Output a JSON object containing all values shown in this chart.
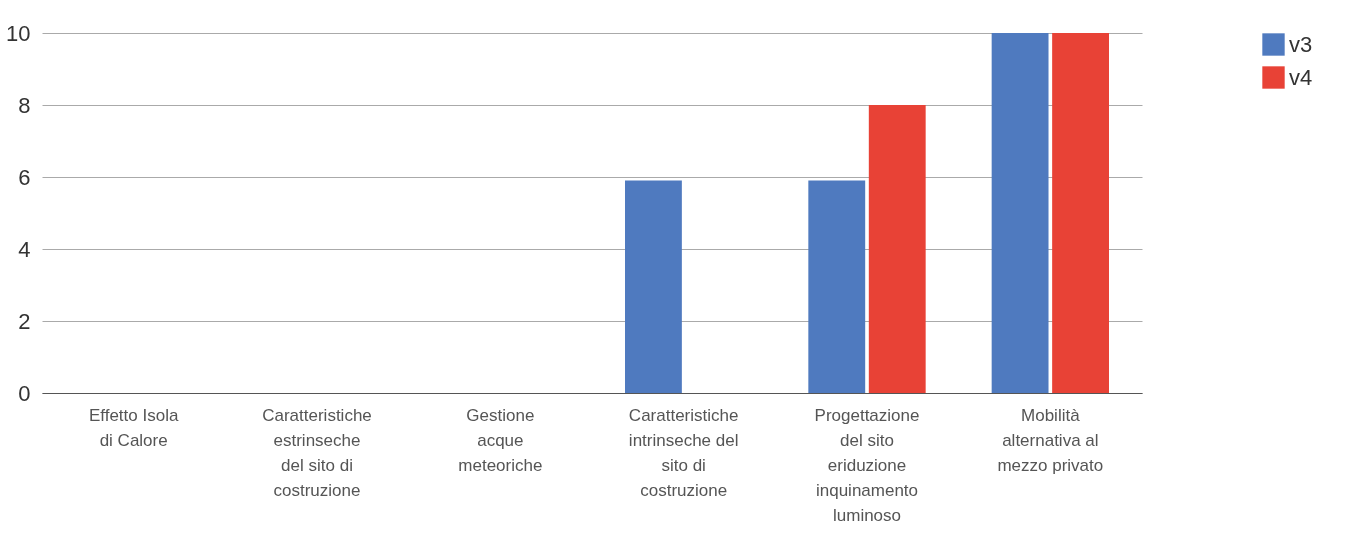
{
  "chart_data": {
    "type": "bar",
    "categories": [
      "Effetto Isola\ndi Calore",
      "Caratteristiche\nestrinseche\ndel sito di\ncostruzione",
      "Gestione\nacque\nmeteoriche",
      "Caratteristiche\nintrinseche del\nsito di\ncostruzione",
      "Progettazione\ndel sito\neriduzione\ninquinamento\nluminoso",
      "Mobilità\nalternativa al\nmezzo privato"
    ],
    "series": [
      {
        "name": "v3",
        "color": "#4f7abf",
        "values": [
          0,
          0,
          0,
          5.9,
          5.9,
          10
        ]
      },
      {
        "name": "v4",
        "color": "#e84236",
        "values": [
          0,
          0,
          0,
          0,
          8,
          10
        ]
      }
    ],
    "ylim": [
      0,
      10
    ],
    "yticks": [
      0,
      2,
      4,
      6,
      8,
      10
    ],
    "grid": "y",
    "legend": "top right"
  }
}
